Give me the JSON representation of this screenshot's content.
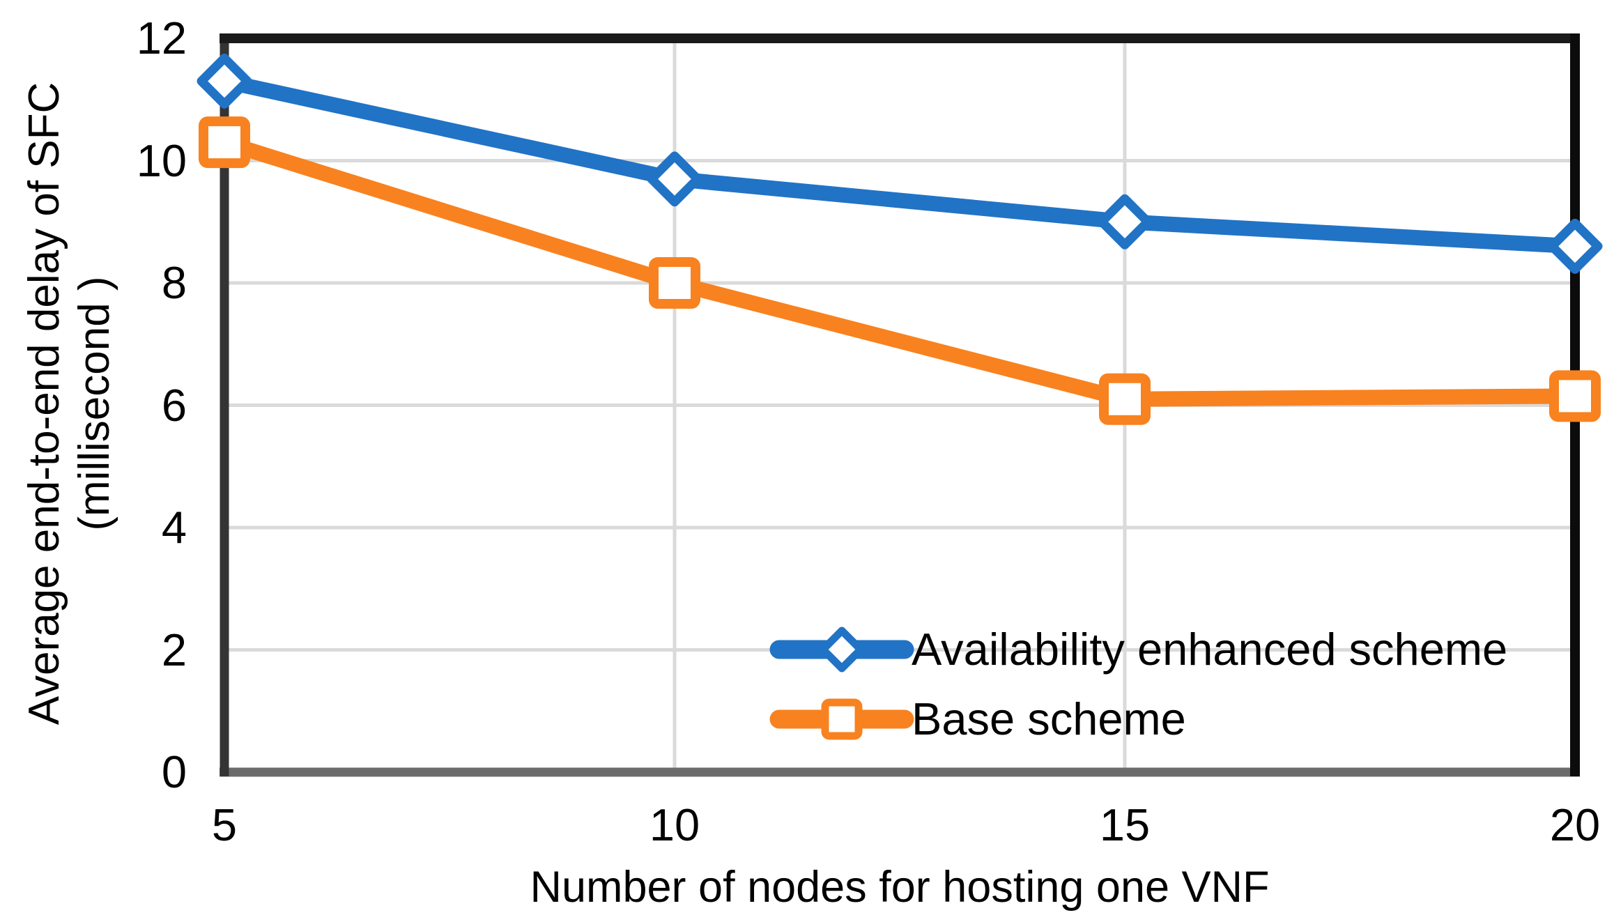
{
  "chart_data": {
    "type": "line",
    "x": [
      5,
      10,
      15,
      20
    ],
    "x_ticks": [
      "5",
      "10",
      "15",
      "20"
    ],
    "y_ticks": [
      "0",
      "2",
      "4",
      "6",
      "8",
      "10",
      "12"
    ],
    "xlim": [
      5,
      20
    ],
    "ylim": [
      0,
      12
    ],
    "grid": true,
    "legend_position": "inside-bottom-right",
    "xlabel": "Number of nodes for hosting one VNF",
    "ylabel_line1": "Average end-to-end delay of SFC",
    "ylabel_line2": "(millisecond )",
    "series": [
      {
        "name": "Availability enhanced scheme",
        "values": [
          11.3,
          9.7,
          9.0,
          8.6
        ],
        "color": "#2173C6",
        "marker": "diamond"
      },
      {
        "name": "Base scheme",
        "values": [
          10.3,
          8.0,
          6.1,
          6.15
        ],
        "color": "#F8821F",
        "marker": "square"
      }
    ],
    "colors": {
      "background": "#FFFFFF",
      "grid": "#DADADA",
      "text": "#000000",
      "border_top": "#1B1B1B",
      "border_right": "#0C0C0C",
      "border_bottom": "#6B6B6B",
      "border_left": "#343434"
    }
  }
}
